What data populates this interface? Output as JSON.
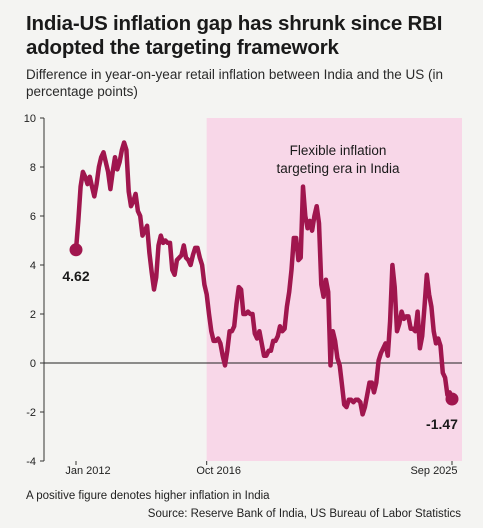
{
  "title": "India-US inflation gap has shrunk since RBI adopted the targeting framework",
  "subtitle": "Difference in year-on-year retail inflation between India and the US (in percentage points)",
  "note": "A positive figure denotes higher inflation in India",
  "source": "Source: Reserve Bank of India, US Bureau of Labor Statistics",
  "colors": {
    "line": "#a0164e",
    "shade": "#f8d7e8",
    "background": "#f4f4f2"
  },
  "chart_data": {
    "type": "line",
    "ylim": [
      -4,
      10
    ],
    "yticks": [
      -4,
      -2,
      0,
      2,
      4,
      6,
      8,
      10
    ],
    "xlim": [
      "2012-01",
      "2025-09"
    ],
    "xticks": [
      {
        "date": "2012-01",
        "label": "Jan 2012"
      },
      {
        "date": "2016-10",
        "label": "Oct 2016"
      },
      {
        "date": "2025-09",
        "label": "Sep 2025"
      }
    ],
    "shaded_region": {
      "from": "2016-10",
      "to": "2025-09",
      "label_lines": [
        "Flexible inflation",
        "targeting era in India"
      ]
    },
    "annotations": [
      {
        "date": "2012-01",
        "value": 4.62,
        "label": "4.62"
      },
      {
        "date": "2025-09",
        "value": -1.47,
        "label": "-1.47"
      }
    ],
    "series": [
      {
        "points": [
          [
            "2012-01",
            4.62
          ],
          [
            "2012-02",
            5.8
          ],
          [
            "2012-03",
            7.2
          ],
          [
            "2012-04",
            7.8
          ],
          [
            "2012-05",
            7.6
          ],
          [
            "2012-06",
            7.3
          ],
          [
            "2012-07",
            7.6
          ],
          [
            "2012-08",
            7.2
          ],
          [
            "2012-09",
            6.8
          ],
          [
            "2012-10",
            7.3
          ],
          [
            "2012-11",
            8.0
          ],
          [
            "2012-12",
            8.4
          ],
          [
            "2013-01",
            8.6
          ],
          [
            "2013-02",
            8.2
          ],
          [
            "2013-03",
            7.8
          ],
          [
            "2013-04",
            7.1
          ],
          [
            "2013-05",
            7.8
          ],
          [
            "2013-06",
            8.4
          ],
          [
            "2013-07",
            7.9
          ],
          [
            "2013-08",
            8.2
          ],
          [
            "2013-09",
            8.7
          ],
          [
            "2013-10",
            9.0
          ],
          [
            "2013-11",
            8.7
          ],
          [
            "2013-12",
            7.0
          ],
          [
            "2014-01",
            6.4
          ],
          [
            "2014-02",
            6.6
          ],
          [
            "2014-03",
            6.9
          ],
          [
            "2014-04",
            6.2
          ],
          [
            "2014-05",
            6.0
          ],
          [
            "2014-06",
            5.2
          ],
          [
            "2014-07",
            5.4
          ],
          [
            "2014-08",
            5.6
          ],
          [
            "2014-09",
            4.5
          ],
          [
            "2014-10",
            3.7
          ],
          [
            "2014-11",
            3.0
          ],
          [
            "2014-12",
            3.5
          ],
          [
            "2015-01",
            4.8
          ],
          [
            "2015-02",
            5.2
          ],
          [
            "2015-03",
            4.9
          ],
          [
            "2015-04",
            5.0
          ],
          [
            "2015-05",
            4.9
          ],
          [
            "2015-06",
            4.9
          ],
          [
            "2015-07",
            3.8
          ],
          [
            "2015-08",
            3.6
          ],
          [
            "2015-09",
            4.2
          ],
          [
            "2015-10",
            4.3
          ],
          [
            "2015-11",
            4.4
          ],
          [
            "2015-12",
            4.8
          ],
          [
            "2016-01",
            4.3
          ],
          [
            "2016-02",
            4.2
          ],
          [
            "2016-03",
            4.0
          ],
          [
            "2016-04",
            4.4
          ],
          [
            "2016-05",
            4.7
          ],
          [
            "2016-06",
            4.7
          ],
          [
            "2016-07",
            4.3
          ],
          [
            "2016-08",
            4.0
          ],
          [
            "2016-09",
            3.2
          ],
          [
            "2016-10",
            2.8
          ],
          [
            "2016-11",
            2.0
          ],
          [
            "2016-12",
            1.3
          ],
          [
            "2017-01",
            0.9
          ],
          [
            "2017-02",
            0.9
          ],
          [
            "2017-03",
            1.0
          ],
          [
            "2017-04",
            0.8
          ],
          [
            "2017-05",
            0.3
          ],
          [
            "2017-06",
            -0.1
          ],
          [
            "2017-07",
            0.5
          ],
          [
            "2017-08",
            1.3
          ],
          [
            "2017-09",
            1.3
          ],
          [
            "2017-10",
            1.5
          ],
          [
            "2017-11",
            2.4
          ],
          [
            "2017-12",
            3.1
          ],
          [
            "2018-01",
            3.0
          ],
          [
            "2018-02",
            2.0
          ],
          [
            "2018-03",
            2.0
          ],
          [
            "2018-04",
            2.1
          ],
          [
            "2018-05",
            2.0
          ],
          [
            "2018-06",
            2.0
          ],
          [
            "2018-07",
            1.2
          ],
          [
            "2018-08",
            1.0
          ],
          [
            "2018-09",
            1.3
          ],
          [
            "2018-10",
            0.8
          ],
          [
            "2018-11",
            0.3
          ],
          [
            "2018-12",
            0.3
          ],
          [
            "2019-01",
            0.5
          ],
          [
            "2019-02",
            0.5
          ],
          [
            "2019-03",
            0.9
          ],
          [
            "2019-04",
            0.9
          ],
          [
            "2019-05",
            1.1
          ],
          [
            "2019-06",
            1.5
          ],
          [
            "2019-07",
            1.3
          ],
          [
            "2019-08",
            1.4
          ],
          [
            "2019-09",
            2.3
          ],
          [
            "2019-10",
            2.9
          ],
          [
            "2019-11",
            3.8
          ],
          [
            "2019-12",
            5.1
          ],
          [
            "2020-01",
            5.1
          ],
          [
            "2020-02",
            4.2
          ],
          [
            "2020-03",
            4.3
          ],
          [
            "2020-04",
            7.2
          ],
          [
            "2020-05",
            6.0
          ],
          [
            "2020-06",
            5.5
          ],
          [
            "2020-07",
            5.8
          ],
          [
            "2020-08",
            5.4
          ],
          [
            "2020-09",
            6.0
          ],
          [
            "2020-10",
            6.4
          ],
          [
            "2020-11",
            5.7
          ],
          [
            "2020-12",
            3.2
          ],
          [
            "2021-01",
            2.7
          ],
          [
            "2021-02",
            3.4
          ],
          [
            "2021-03",
            2.9
          ],
          [
            "2021-04",
            -0.1
          ],
          [
            "2021-05",
            1.3
          ],
          [
            "2021-06",
            0.9
          ],
          [
            "2021-07",
            0.2
          ],
          [
            "2021-08",
            -0.1
          ],
          [
            "2021-09",
            -0.9
          ],
          [
            "2021-10",
            -1.7
          ],
          [
            "2021-11",
            -1.8
          ],
          [
            "2021-12",
            -1.5
          ],
          [
            "2022-01",
            -1.5
          ],
          [
            "2022-02",
            -1.6
          ],
          [
            "2022-03",
            -1.5
          ],
          [
            "2022-04",
            -1.5
          ],
          [
            "2022-05",
            -1.6
          ],
          [
            "2022-06",
            -2.1
          ],
          [
            "2022-07",
            -1.8
          ],
          [
            "2022-08",
            -1.3
          ],
          [
            "2022-09",
            -0.8
          ],
          [
            "2022-10",
            -0.8
          ],
          [
            "2022-11",
            -1.2
          ],
          [
            "2022-12",
            -0.8
          ],
          [
            "2023-01",
            0.1
          ],
          [
            "2023-02",
            0.4
          ],
          [
            "2023-03",
            0.6
          ],
          [
            "2023-04",
            0.8
          ],
          [
            "2023-05",
            0.3
          ],
          [
            "2023-06",
            1.7
          ],
          [
            "2023-07",
            4.0
          ],
          [
            "2023-08",
            3.1
          ],
          [
            "2023-09",
            1.3
          ],
          [
            "2023-10",
            1.6
          ],
          [
            "2023-11",
            2.1
          ],
          [
            "2023-12",
            1.8
          ],
          [
            "2024-01",
            1.9
          ],
          [
            "2024-02",
            1.9
          ],
          [
            "2024-03",
            1.4
          ],
          [
            "2024-04",
            1.4
          ],
          [
            "2024-05",
            1.3
          ],
          [
            "2024-06",
            2.1
          ],
          [
            "2024-07",
            0.6
          ],
          [
            "2024-08",
            1.1
          ],
          [
            "2024-09",
            2.3
          ],
          [
            "2024-10",
            3.6
          ],
          [
            "2024-11",
            2.8
          ],
          [
            "2024-12",
            2.3
          ],
          [
            "2025-01",
            1.3
          ],
          [
            "2025-02",
            0.8
          ],
          [
            "2025-03",
            1.0
          ],
          [
            "2025-04",
            0.7
          ],
          [
            "2025-05",
            -0.4
          ],
          [
            "2025-06",
            -0.6
          ],
          [
            "2025-07",
            -1.3
          ],
          [
            "2025-08",
            -1.2
          ],
          [
            "2025-09",
            -1.47
          ]
        ]
      }
    ]
  }
}
